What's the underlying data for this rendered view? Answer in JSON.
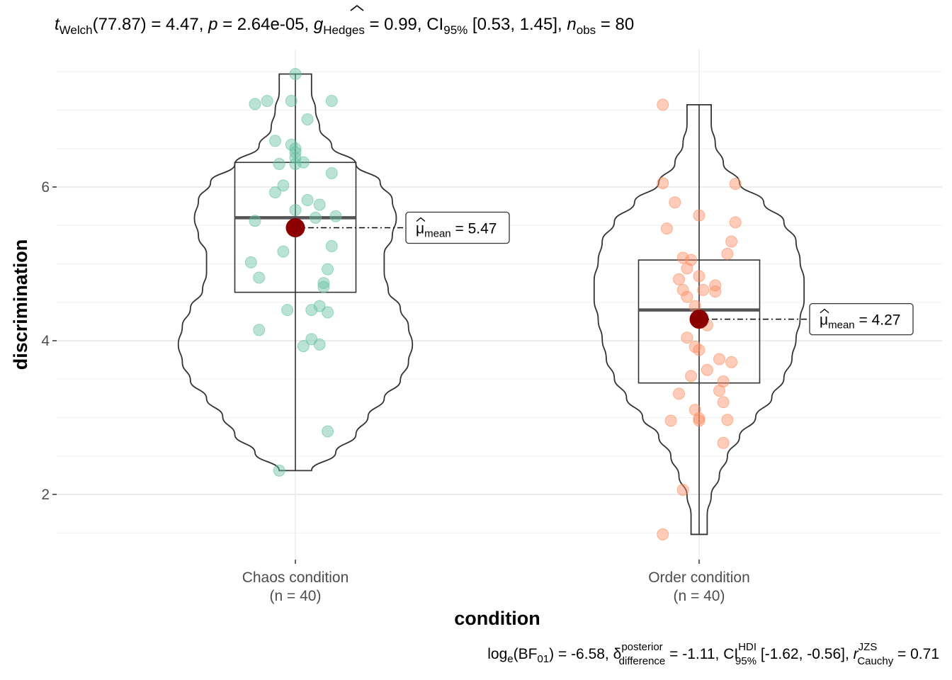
{
  "chart_data": {
    "type": "violin-box-scatter",
    "subtitle": {
      "t_sym": "t",
      "t_sub": "Welch",
      "t_val": "(77.87) = 4.47, ",
      "p_sym": "p",
      "p_val": " = 2.64e-05, ",
      "g_sym": "g",
      "g_sub": "Hedges",
      "g_val": " = 0.99, CI",
      "ci_sub": "95%",
      "ci_val": " [0.53, 1.45], ",
      "n_sym": "n",
      "n_sub": "obs",
      "n_val": " = 80"
    },
    "caption": {
      "log": "log",
      "log_sub": "e",
      "bf_open": "(BF",
      "bf_sub": "01",
      "bf_val": ") = -6.58, ",
      "delta": "δ",
      "delta_sup": "posterior",
      "delta_sub": "difference",
      "delta_val": " = -1.11, CI",
      "hdi_sup": "HDI",
      "hdi_sub": "95%",
      "hdi_val": " [-1.62, -0.56], ",
      "r_sym": "r",
      "r_sup": "JZS",
      "r_sub": "Cauchy",
      "r_val": " = 0.71"
    },
    "xlabel": "condition",
    "ylabel": "discrimination",
    "ylim": [
      1.2,
      7.6
    ],
    "yticks": [
      2,
      4,
      6
    ],
    "grid": true,
    "legend": "none",
    "groups": [
      {
        "label": "Chaos condition",
        "n_label": "(n = 40)",
        "color": "#66c2a5",
        "box": {
          "q1": 4.63,
          "median": 5.6,
          "q3": 6.32,
          "whisker_low": 2.31,
          "whisker_high": 7.47
        },
        "mean": 5.47,
        "mean_label_mu": "μ",
        "mean_label_sub": "mean",
        "mean_label_val": " = 5.47",
        "violin_widths": [
          0.04,
          0.04,
          0.05,
          0.06,
          0.09,
          0.15,
          0.21,
          0.24,
          0.25,
          0.24,
          0.22,
          0.22,
          0.23,
          0.26,
          0.28,
          0.29,
          0.28,
          0.26,
          0.22,
          0.18,
          0.15,
          0.1,
          0.04
        ],
        "points": [
          [
            0.0,
            7.47
          ],
          [
            -0.07,
            7.12
          ],
          [
            -0.1,
            7.08
          ],
          [
            -0.01,
            7.12
          ],
          [
            0.09,
            7.12
          ],
          [
            0.03,
            6.88
          ],
          [
            -0.05,
            6.6
          ],
          [
            -0.01,
            6.55
          ],
          [
            0.0,
            6.5
          ],
          [
            0.0,
            6.38
          ],
          [
            0.02,
            6.32
          ],
          [
            -0.04,
            6.3
          ],
          [
            0.0,
            6.3
          ],
          [
            0.09,
            6.18
          ],
          [
            -0.03,
            6.02
          ],
          [
            -0.05,
            5.93
          ],
          [
            0.03,
            5.83
          ],
          [
            0.06,
            5.77
          ],
          [
            0.05,
            5.6
          ],
          [
            0.1,
            5.62
          ],
          [
            -0.1,
            5.56
          ],
          [
            0.09,
            5.23
          ],
          [
            -0.03,
            5.16
          ],
          [
            -0.11,
            5.02
          ],
          [
            0.08,
            4.93
          ],
          [
            -0.09,
            4.82
          ],
          [
            0.07,
            4.75
          ],
          [
            0.07,
            4.7
          ],
          [
            0.06,
            4.45
          ],
          [
            -0.02,
            4.4
          ],
          [
            0.04,
            4.4
          ],
          [
            0.08,
            4.37
          ],
          [
            -0.09,
            4.14
          ],
          [
            0.04,
            4.02
          ],
          [
            0.02,
            3.93
          ],
          [
            0.06,
            3.95
          ],
          [
            0.08,
            2.82
          ],
          [
            -0.04,
            2.31
          ],
          [
            0.0,
            6.45
          ],
          [
            0.0,
            5.7
          ]
        ]
      },
      {
        "label": "Order condition",
        "n_label": "(n = 40)",
        "color": "#fc8d62",
        "box": {
          "q1": 3.45,
          "median": 4.4,
          "q3": 5.05,
          "whisker_low": 1.48,
          "whisker_high": 7.07
        },
        "mean": 4.28,
        "mean_label_mu": "μ",
        "mean_label_sub": "mean",
        "mean_label_val": " = 4.27",
        "violin_widths": [
          0.03,
          0.03,
          0.04,
          0.06,
          0.1,
          0.16,
          0.21,
          0.24,
          0.25,
          0.26,
          0.26,
          0.25,
          0.24,
          0.23,
          0.21,
          0.18,
          0.14,
          0.1,
          0.07,
          0.05,
          0.03,
          0.02,
          0.02
        ],
        "points": [
          [
            -0.09,
            7.07
          ],
          [
            -0.09,
            6.05
          ],
          [
            0.09,
            6.04
          ],
          [
            -0.06,
            5.8
          ],
          [
            0.0,
            5.63
          ],
          [
            0.09,
            5.54
          ],
          [
            -0.08,
            5.46
          ],
          [
            0.08,
            5.29
          ],
          [
            0.07,
            5.13
          ],
          [
            -0.04,
            5.08
          ],
          [
            -0.02,
            5.05
          ],
          [
            -0.03,
            4.94
          ],
          [
            -0.05,
            4.8
          ],
          [
            0.0,
            4.84
          ],
          [
            0.04,
            4.72
          ],
          [
            -0.04,
            4.66
          ],
          [
            0.01,
            4.66
          ],
          [
            -0.03,
            4.57
          ],
          [
            0.04,
            4.64
          ],
          [
            -0.01,
            4.45
          ],
          [
            -0.03,
            4.04
          ],
          [
            -0.01,
            3.92
          ],
          [
            0.0,
            3.88
          ],
          [
            0.05,
            3.76
          ],
          [
            0.08,
            3.72
          ],
          [
            0.02,
            3.62
          ],
          [
            -0.02,
            3.54
          ],
          [
            0.06,
            3.47
          ],
          [
            0.05,
            3.35
          ],
          [
            -0.05,
            3.31
          ],
          [
            0.06,
            3.2
          ],
          [
            0.0,
            2.99
          ],
          [
            0.07,
            2.97
          ],
          [
            -0.07,
            2.96
          ],
          [
            0.0,
            2.96
          ],
          [
            0.06,
            2.67
          ],
          [
            -0.04,
            2.06
          ],
          [
            -0.09,
            1.48
          ],
          [
            -0.01,
            3.1
          ],
          [
            0.02,
            4.2
          ]
        ]
      }
    ]
  }
}
